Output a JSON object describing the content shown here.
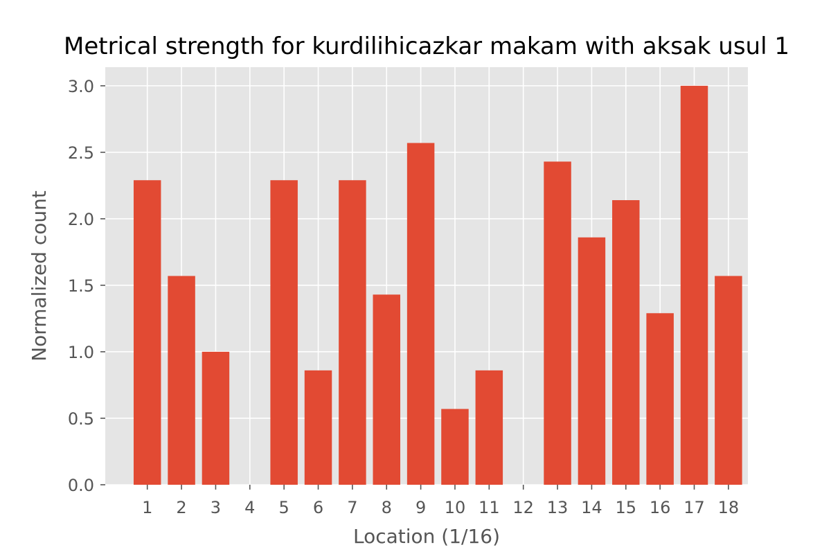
{
  "chart_data": {
    "type": "bar",
    "title": "Metrical strength for kurdilihicazkar makam with aksak usul 1",
    "xlabel": "Location (1/16)",
    "ylabel": "Normalized count",
    "categories": [
      "1",
      "2",
      "3",
      "4",
      "5",
      "6",
      "7",
      "8",
      "9",
      "10",
      "11",
      "12",
      "13",
      "14",
      "15",
      "16",
      "17",
      "18"
    ],
    "values": [
      2.29,
      1.57,
      1.0,
      0.0,
      2.29,
      0.86,
      2.29,
      1.43,
      2.57,
      0.57,
      0.86,
      0.0,
      2.43,
      1.86,
      2.14,
      1.29,
      3.0,
      1.57
    ],
    "ylim": [
      0,
      3.14
    ],
    "yticks": [
      "0.0",
      "0.5",
      "1.0",
      "1.5",
      "2.0",
      "2.5",
      "3.0"
    ],
    "grid": true,
    "bar_color": "#E24A33",
    "plot_background": "#E5E5E5",
    "grid_color": "#FFFFFF"
  }
}
